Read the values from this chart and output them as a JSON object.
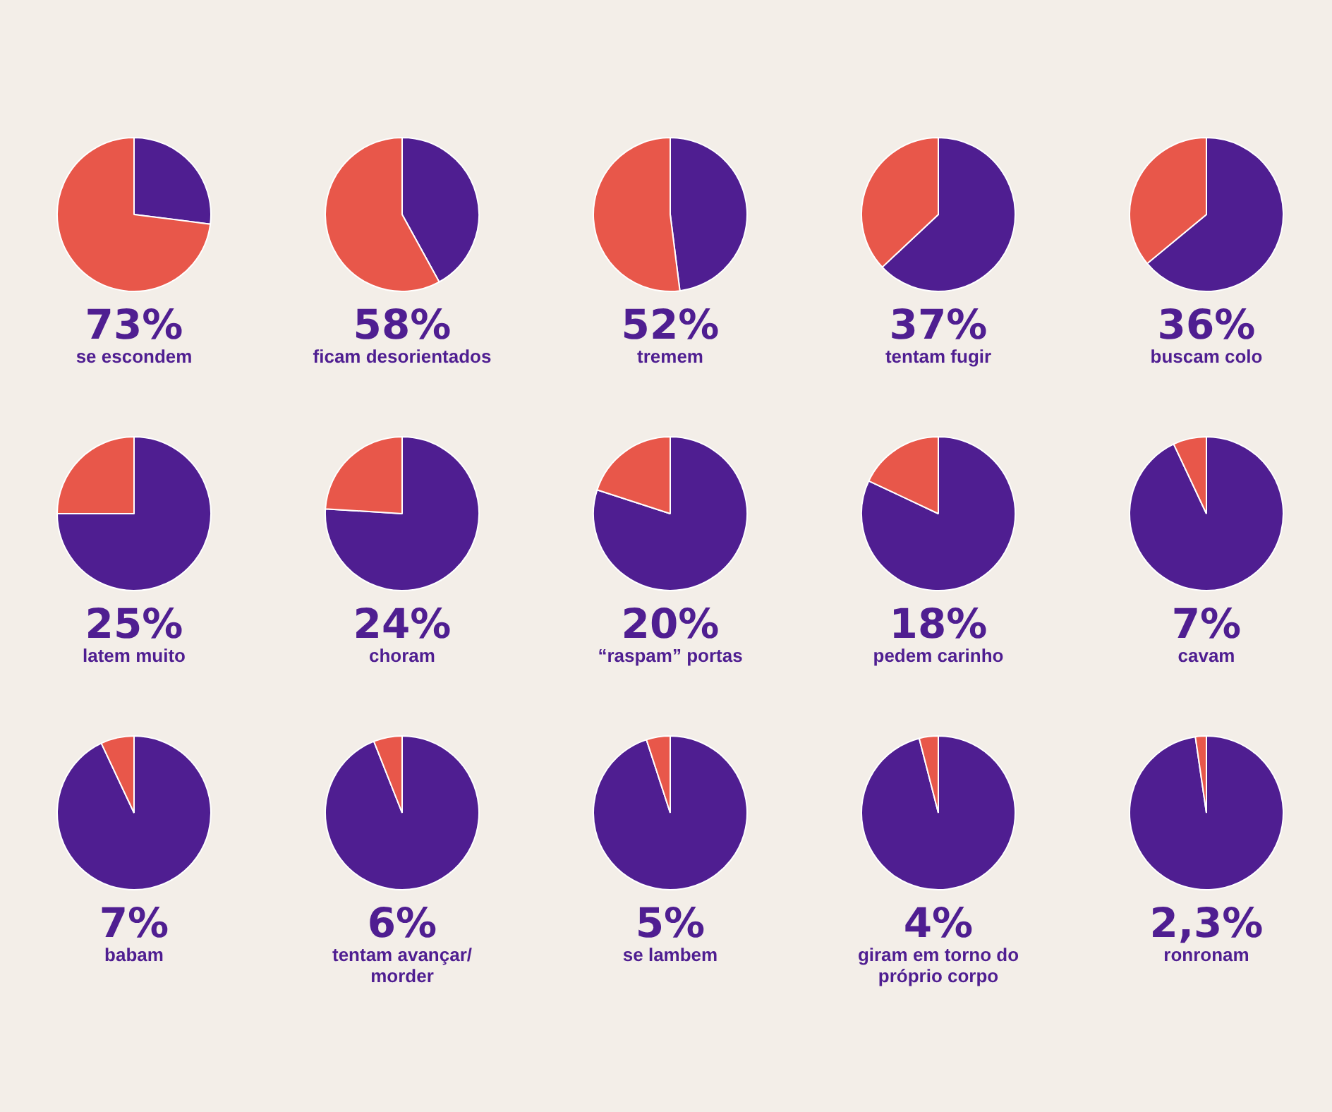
{
  "chart_data": [
    {
      "type": "pie",
      "title": "73%",
      "subtitle": "se escondem",
      "categories": [
        null,
        null
      ],
      "values": [
        27,
        73
      ],
      "colors": [
        "#4f1e91",
        "#e8574a"
      ]
    },
    {
      "type": "pie",
      "title": "58%",
      "subtitle": "ficam desorientados",
      "categories": [
        null,
        null
      ],
      "values": [
        42,
        58
      ],
      "colors": [
        "#4f1e91",
        "#e8574a"
      ]
    },
    {
      "type": "pie",
      "title": "52%",
      "subtitle": "tremem",
      "categories": [
        null,
        null
      ],
      "values": [
        48,
        52
      ],
      "colors": [
        "#4f1e91",
        "#e8574a"
      ]
    },
    {
      "type": "pie",
      "title": "37%",
      "subtitle": "tentam fugir",
      "categories": [
        null,
        null
      ],
      "values": [
        63,
        37
      ],
      "colors": [
        "#4f1e91",
        "#e8574a"
      ]
    },
    {
      "type": "pie",
      "title": "36%",
      "subtitle": "buscam colo",
      "categories": [
        null,
        null
      ],
      "values": [
        64,
        36
      ],
      "colors": [
        "#4f1e91",
        "#e8574a"
      ]
    },
    {
      "type": "pie",
      "title": "25%",
      "subtitle": "latem muito",
      "categories": [
        null,
        null
      ],
      "values": [
        75,
        25
      ],
      "colors": [
        "#4f1e91",
        "#e8574a"
      ]
    },
    {
      "type": "pie",
      "title": "24%",
      "subtitle": "choram",
      "categories": [
        null,
        null
      ],
      "values": [
        76,
        24
      ],
      "colors": [
        "#4f1e91",
        "#e8574a"
      ]
    },
    {
      "type": "pie",
      "title": "20%",
      "subtitle": "“raspam” portas",
      "categories": [
        null,
        null
      ],
      "values": [
        80,
        20
      ],
      "colors": [
        "#4f1e91",
        "#e8574a"
      ]
    },
    {
      "type": "pie",
      "title": "18%",
      "subtitle": "pedem carinho",
      "categories": [
        null,
        null
      ],
      "values": [
        82,
        18
      ],
      "colors": [
        "#4f1e91",
        "#e8574a"
      ]
    },
    {
      "type": "pie",
      "title": "7%",
      "subtitle": "cavam",
      "categories": [
        null,
        null
      ],
      "values": [
        93,
        7
      ],
      "colors": [
        "#4f1e91",
        "#e8574a"
      ]
    },
    {
      "type": "pie",
      "title": "7%",
      "subtitle": "babam",
      "categories": [
        null,
        null
      ],
      "values": [
        93,
        7
      ],
      "colors": [
        "#4f1e91",
        "#e8574a"
      ]
    },
    {
      "type": "pie",
      "title": "6%",
      "subtitle": "tentam avançar/ morder",
      "categories": [
        null,
        null
      ],
      "values": [
        94,
        6
      ],
      "colors": [
        "#4f1e91",
        "#e8574a"
      ]
    },
    {
      "type": "pie",
      "title": "5%",
      "subtitle": "se lambem",
      "categories": [
        null,
        null
      ],
      "values": [
        95,
        5
      ],
      "colors": [
        "#4f1e91",
        "#e8574a"
      ]
    },
    {
      "type": "pie",
      "title": "4%",
      "subtitle": "giram em torno do próprio corpo",
      "categories": [
        null,
        null
      ],
      "values": [
        96,
        4
      ],
      "colors": [
        "#4f1e91",
        "#e8574a"
      ]
    },
    {
      "type": "pie",
      "title": "2,3%",
      "subtitle": "ronronam",
      "categories": [
        null,
        null
      ],
      "values": [
        97.7,
        2.3
      ],
      "colors": [
        "#4f1e91",
        "#e8574a"
      ]
    }
  ]
}
